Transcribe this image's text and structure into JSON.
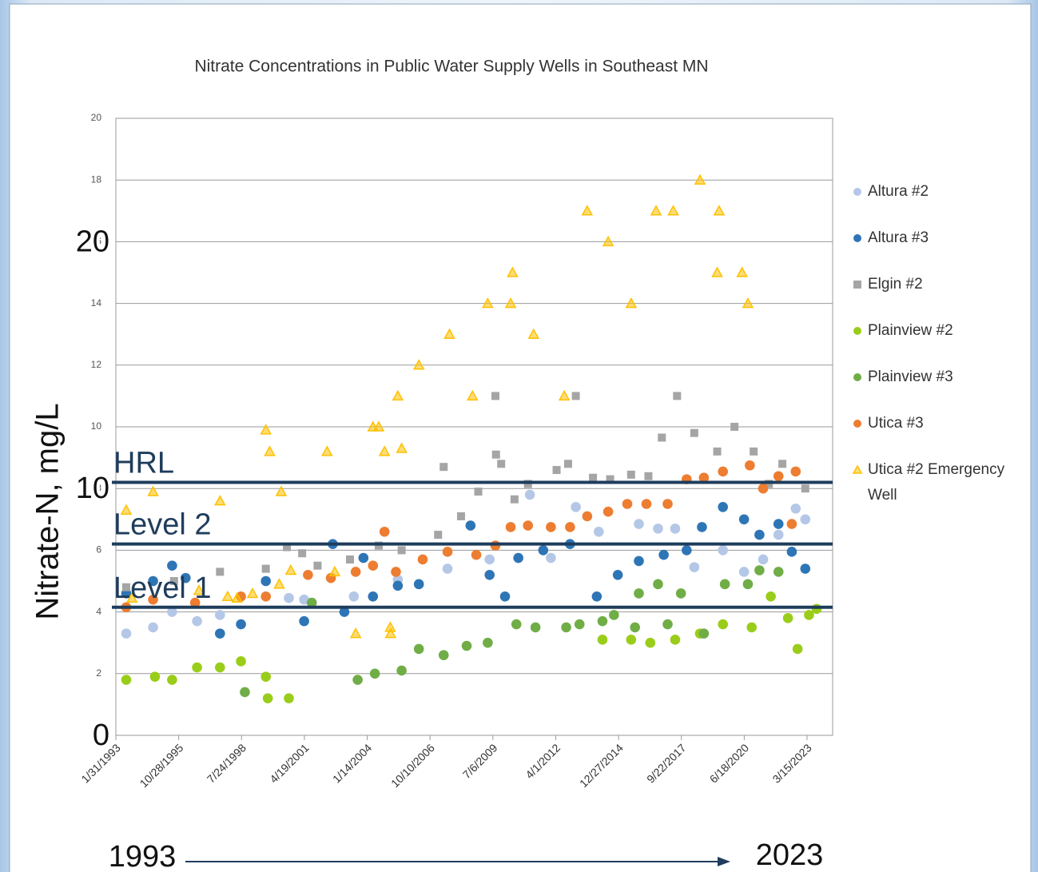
{
  "chart_data": {
    "type": "scatter",
    "title": "Nitrate Concentrations in Public Water Supply Wells in Southeast MN",
    "y_label": "Nitrate-N, mg/L",
    "xlim": [
      "1993-01-31",
      "2024-04-25"
    ],
    "xticks": [
      {
        "value": "1993-01-31",
        "label": "1/31/1993"
      },
      {
        "value": "1995-10-28",
        "label": "10/28/1995"
      },
      {
        "value": "1998-07-24",
        "label": "7/24/1998"
      },
      {
        "value": "2001-04-19",
        "label": "4/19/2001"
      },
      {
        "value": "2004-01-14",
        "label": "1/14/2004"
      },
      {
        "value": "2006-10-10",
        "label": "10/10/2006"
      },
      {
        "value": "2009-07-06",
        "label": "7/6/2009"
      },
      {
        "value": "2012-04-01",
        "label": "4/1/2012"
      },
      {
        "value": "2014-12-27",
        "label": "12/27/2014"
      },
      {
        "value": "2017-09-22",
        "label": "9/22/2017"
      },
      {
        "value": "2020-06-18",
        "label": "6/18/2020"
      },
      {
        "value": "2023-03-15",
        "label": "3/15/2023"
      }
    ],
    "ylim": [
      0,
      20
    ],
    "yticks": [
      2,
      4,
      6,
      8,
      10,
      12,
      14,
      16,
      18,
      20
    ],
    "grid": true,
    "legend": "right",
    "series": [
      {
        "name": "Altura #2",
        "color": "#b4c7e7",
        "marker": "circle",
        "x": [
          "1993-07-15",
          "1994-09-15",
          "1995-07-15",
          "1996-08-15",
          "1997-08-15",
          "2000-08-15",
          "2001-04-15",
          "2003-06-15",
          "2005-05-15",
          "2007-07-15",
          "2009-05-15",
          "2011-02-15",
          "2012-01-15",
          "2013-02-15",
          "2014-02-15",
          "2015-11-15",
          "2016-09-15",
          "2017-06-15",
          "2018-04-15",
          "2019-07-15",
          "2020-06-15",
          "2021-04-15",
          "2021-12-15",
          "2022-09-15",
          "2023-02-15"
        ],
        "values": [
          3.3,
          3.5,
          4.0,
          3.7,
          3.9,
          4.45,
          4.4,
          4.5,
          5.05,
          5.4,
          5.7,
          7.8,
          5.75,
          7.4,
          6.6,
          6.85,
          6.7,
          6.7,
          5.45,
          6.0,
          5.3,
          5.7,
          6.5,
          7.35,
          7.0
        ]
      },
      {
        "name": "Altura #3",
        "color": "#2e75b6",
        "marker": "circle",
        "x": [
          "1993-07-15",
          "1994-09-15",
          "1995-07-15",
          "1996-02-15",
          "1997-08-15",
          "1998-07-15",
          "1999-08-15",
          "2001-04-15",
          "2002-07-15",
          "2003-01-15",
          "2003-11-15",
          "2004-04-15",
          "2005-05-15",
          "2006-04-15",
          "2008-07-15",
          "2009-05-15",
          "2010-01-15",
          "2010-08-15",
          "2011-09-15",
          "2012-11-15",
          "2014-01-15",
          "2014-12-15",
          "2015-11-15",
          "2016-12-15",
          "2017-12-15",
          "2018-08-15",
          "2019-07-15",
          "2020-06-15",
          "2021-02-15",
          "2021-12-15",
          "2022-07-15",
          "2023-02-15"
        ],
        "values": [
          4.6,
          5.0,
          5.5,
          5.1,
          3.3,
          3.6,
          5.0,
          3.7,
          6.2,
          4.0,
          5.75,
          4.5,
          4.85,
          4.9,
          6.8,
          5.2,
          4.5,
          5.75,
          6.0,
          6.2,
          4.5,
          5.2,
          5.65,
          5.85,
          6.0,
          6.75,
          7.4,
          7.0,
          6.5,
          6.85,
          5.95,
          5.4
        ]
      },
      {
        "name": "Elgin #2",
        "color": "#a5a5a5",
        "marker": "square",
        "x": [
          "1993-07-15",
          "1995-08-15",
          "1997-08-15",
          "1999-08-15",
          "2000-07-15",
          "2001-03-15",
          "2001-11-15",
          "2003-04-15",
          "2004-07-15",
          "2005-07-15",
          "2007-02-15",
          "2007-05-15",
          "2008-02-15",
          "2008-11-15",
          "2009-08-15",
          "2009-08-25",
          "2009-11-15",
          "2010-06-15",
          "2011-01-15",
          "2012-04-15",
          "2012-10-15",
          "2013-02-15",
          "2013-11-15",
          "2014-08-15",
          "2015-07-15",
          "2016-04-15",
          "2016-11-15",
          "2017-07-15",
          "2018-04-15",
          "2019-04-15",
          "2020-01-15",
          "2020-11-15",
          "2021-07-15",
          "2022-02-15",
          "2023-02-15"
        ],
        "values": [
          4.8,
          5.0,
          5.3,
          5.4,
          6.1,
          5.9,
          5.5,
          5.7,
          6.15,
          6.0,
          6.5,
          8.7,
          7.1,
          7.9,
          11.0,
          9.1,
          8.8,
          7.65,
          8.15,
          8.6,
          8.8,
          11.0,
          8.35,
          8.3,
          8.45,
          8.4,
          9.65,
          11.0,
          9.8,
          9.2,
          10.0,
          9.2,
          8.15,
          8.8,
          8.0
        ]
      },
      {
        "name": "Plainview #2",
        "color": "#9acd1a",
        "marker": "circle",
        "x": [
          "1993-07-15",
          "1994-10-15",
          "1995-07-15",
          "1996-08-15",
          "1997-08-15",
          "1998-07-15",
          "1999-08-15",
          "1999-09-15",
          "2000-08-15",
          "2014-04-15",
          "2015-07-15",
          "2016-05-15",
          "2017-06-15",
          "2018-07-15",
          "2019-07-15",
          "2020-10-15",
          "2021-08-15",
          "2022-05-15",
          "2022-10-15",
          "2023-04-15",
          "2023-08-15"
        ],
        "values": [
          1.8,
          1.9,
          1.8,
          2.2,
          2.2,
          2.4,
          1.9,
          1.2,
          1.2,
          3.1,
          3.1,
          3.0,
          3.1,
          3.3,
          3.6,
          3.5,
          4.5,
          3.8,
          2.8,
          3.9,
          4.1
        ]
      },
      {
        "name": "Plainview #3",
        "color": "#70ad47",
        "marker": "circle",
        "x": [
          "1998-09-15",
          "2001-08-15",
          "2003-08-15",
          "2004-05-15",
          "2005-07-15",
          "2006-04-15",
          "2007-05-15",
          "2008-05-15",
          "2009-04-15",
          "2010-07-15",
          "2011-05-15",
          "2012-09-15",
          "2013-04-15",
          "2014-04-15",
          "2014-10-15",
          "2015-09-15",
          "2015-11-15",
          "2016-09-15",
          "2017-02-15",
          "2017-09-15",
          "2018-09-15",
          "2019-08-15",
          "2020-08-15",
          "2021-02-15",
          "2021-12-15"
        ],
        "values": [
          1.4,
          4.3,
          1.8,
          2.0,
          2.1,
          2.8,
          2.6,
          2.9,
          3.0,
          3.6,
          3.5,
          3.5,
          3.6,
          3.7,
          3.9,
          3.5,
          4.6,
          4.9,
          3.6,
          4.6,
          3.3,
          4.9,
          4.9,
          5.35,
          5.3
        ]
      },
      {
        "name": "Utica #3",
        "color": "#ed7d31",
        "marker": "circle",
        "x": [
          "1993-07-15",
          "1994-09-15",
          "1996-07-15",
          "1998-07-15",
          "1999-08-15",
          "2001-06-15",
          "2002-06-15",
          "2003-07-15",
          "2004-04-15",
          "2004-10-15",
          "2005-04-15",
          "2006-06-15",
          "2007-07-15",
          "2008-10-15",
          "2009-08-15",
          "2010-04-15",
          "2011-01-15",
          "2012-01-15",
          "2012-11-15",
          "2013-08-15",
          "2014-07-15",
          "2015-05-15",
          "2016-03-15",
          "2017-02-15",
          "2017-12-15",
          "2018-09-15",
          "2019-07-15",
          "2020-09-15",
          "2021-04-15",
          "2021-12-15",
          "2022-07-15",
          "2022-09-15"
        ],
        "values": [
          4.15,
          4.4,
          4.3,
          4.5,
          4.5,
          5.2,
          5.1,
          5.3,
          5.5,
          6.6,
          5.3,
          5.7,
          5.95,
          5.85,
          6.15,
          6.75,
          6.8,
          6.75,
          6.75,
          7.1,
          7.25,
          7.5,
          7.5,
          7.5,
          8.3,
          8.35,
          8.55,
          8.75,
          8.0,
          8.4,
          6.85,
          8.55
        ]
      },
      {
        "name": "Utica #2 Emergency Well",
        "color": "#ffc000",
        "marker": "triangle",
        "x": [
          "1993-07-15",
          "1993-10-15",
          "1994-09-15",
          "1996-09-15",
          "1997-08-15",
          "1997-12-15",
          "1998-05-15",
          "1999-01-15",
          "1999-08-15",
          "1999-10-15",
          "2000-03-15",
          "2000-04-15",
          "2000-09-15",
          "2002-04-15",
          "2002-08-15",
          "2003-07-15",
          "2004-04-15",
          "2004-07-15",
          "2004-10-15",
          "2005-01-15",
          "2005-01-20",
          "2005-05-15",
          "2005-07-15",
          "2006-04-15",
          "2007-08-15",
          "2008-08-15",
          "2009-04-15",
          "2010-04-15",
          "2010-05-15",
          "2011-04-15",
          "2012-08-15",
          "2013-08-15",
          "2014-07-15",
          "2015-07-15",
          "2016-08-15",
          "2017-05-15",
          "2018-07-15",
          "2019-04-15",
          "2019-05-15",
          "2020-05-15",
          "2020-08-15"
        ],
        "values": [
          7.3,
          4.45,
          7.9,
          4.7,
          7.6,
          4.5,
          4.45,
          4.6,
          9.9,
          9.2,
          4.9,
          7.9,
          5.35,
          9.2,
          5.3,
          3.3,
          10.0,
          10.0,
          9.2,
          3.5,
          3.3,
          11.0,
          9.3,
          12.0,
          13.0,
          11.0,
          14.0,
          14.0,
          15.0,
          13.0,
          11.0,
          17.0,
          16.0,
          14.0,
          17.0,
          17.0,
          18.0,
          15.0,
          17.0,
          15.0,
          14.0
        ]
      }
    ],
    "reference_lines": [
      {
        "label": "HRL",
        "value": 8.2,
        "color": "#1f3d5c"
      },
      {
        "label": "Level 2",
        "value": 6.2,
        "color": "#1f3d5c"
      },
      {
        "label": "Level 1",
        "value": 4.15,
        "color": "#1f3d5c"
      }
    ],
    "axis_overlays": [
      {
        "text": "20",
        "at": 16
      },
      {
        "text": "10",
        "at": 8
      },
      {
        "text": "0",
        "at": 0
      }
    ],
    "timeline": {
      "start": "1993",
      "end": "2023"
    }
  }
}
